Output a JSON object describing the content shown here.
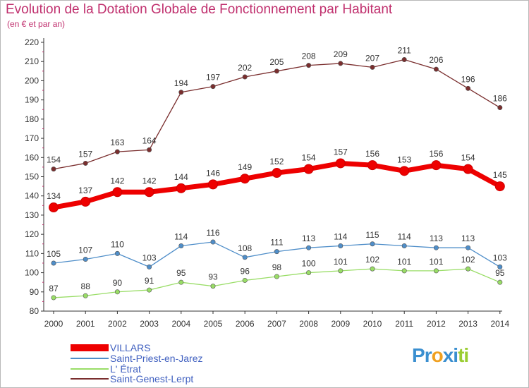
{
  "title": "Evolution de la Dotation Globale de Fonctionnement par Habitant",
  "subtitle": "(en € et par an)",
  "chart_data": {
    "type": "line",
    "title": "Evolution de la Dotation Globale de Fonctionnement par Habitant",
    "subtitle": "(en € et par an)",
    "xlabel": "",
    "ylabel": "",
    "ylim": [
      80,
      220
    ],
    "yticks": [
      80,
      90,
      100,
      110,
      120,
      130,
      140,
      150,
      160,
      170,
      180,
      190,
      200,
      210,
      220
    ],
    "categories": [
      "2000",
      "2001",
      "2002",
      "2003",
      "2004",
      "2005",
      "2006",
      "2007",
      "2008",
      "2009",
      "2010",
      "2011",
      "2012",
      "2013",
      "2014"
    ],
    "grid": false,
    "legend": "bottom-left",
    "series": [
      {
        "name": "VILLARS",
        "color": "#ee0000",
        "values": [
          134,
          137,
          142,
          142,
          144,
          146,
          149,
          152,
          154,
          157,
          156,
          153,
          156,
          154,
          145
        ]
      },
      {
        "name": "Saint-Priest-en-Jarez",
        "color": "#4f8ec9",
        "values": [
          105,
          107,
          110,
          103,
          114,
          116,
          108,
          111,
          113,
          114,
          115,
          114,
          113,
          113,
          103
        ]
      },
      {
        "name": "L' Étrat",
        "color": "#99dd66",
        "values": [
          87,
          88,
          90,
          91,
          95,
          93,
          96,
          98,
          100,
          101,
          102,
          101,
          101,
          102,
          95
        ]
      },
      {
        "name": "Saint-Genest-Lerpt",
        "color": "#7a2e2e",
        "values": [
          154,
          157,
          163,
          164,
          194,
          197,
          202,
          205,
          208,
          209,
          207,
          211,
          206,
          196,
          186
        ]
      }
    ]
  },
  "logo": {
    "letters": [
      "P",
      "r",
      "o",
      "x",
      "i",
      "t",
      "i"
    ],
    "colors": [
      "#3a8fd0",
      "#3a8fd0",
      "#f0a020",
      "#3a8fd0",
      "#3a8fd0",
      "#9acd32",
      "#9acd32"
    ]
  }
}
